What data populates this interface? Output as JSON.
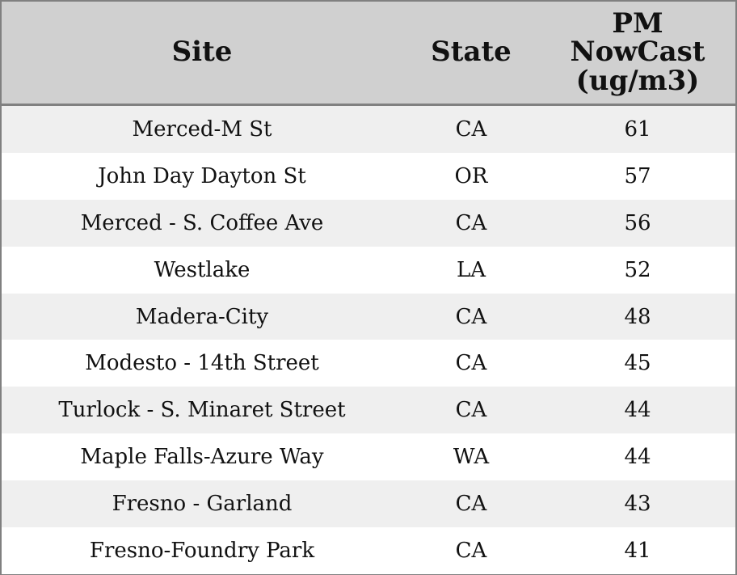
{
  "colors": {
    "header_background": "#d0d0d0",
    "stripe_background": "#efefef",
    "row_background": "#ffffff",
    "border": "#808080",
    "text": "#111111"
  },
  "chart_data": {
    "type": "table",
    "columns": [
      "Site",
      "State",
      "PM\nNowCast\n(ug/m3)"
    ],
    "rows": [
      {
        "site": "Merced-M St",
        "state": "CA",
        "value": "61"
      },
      {
        "site": "John Day Dayton St",
        "state": "OR",
        "value": "57"
      },
      {
        "site": "Merced - S. Coffee Ave",
        "state": "CA",
        "value": "56"
      },
      {
        "site": "Westlake",
        "state": "LA",
        "value": "52"
      },
      {
        "site": "Madera-City",
        "state": "CA",
        "value": "48"
      },
      {
        "site": "Modesto - 14th Street",
        "state": "CA",
        "value": "45"
      },
      {
        "site": "Turlock - S. Minaret Street",
        "state": "CA",
        "value": "44"
      },
      {
        "site": "Maple Falls-Azure Way",
        "state": "WA",
        "value": "44"
      },
      {
        "site": "Fresno - Garland",
        "state": "CA",
        "value": "43"
      },
      {
        "site": "Fresno-Foundry Park",
        "state": "CA",
        "value": "41"
      }
    ]
  }
}
